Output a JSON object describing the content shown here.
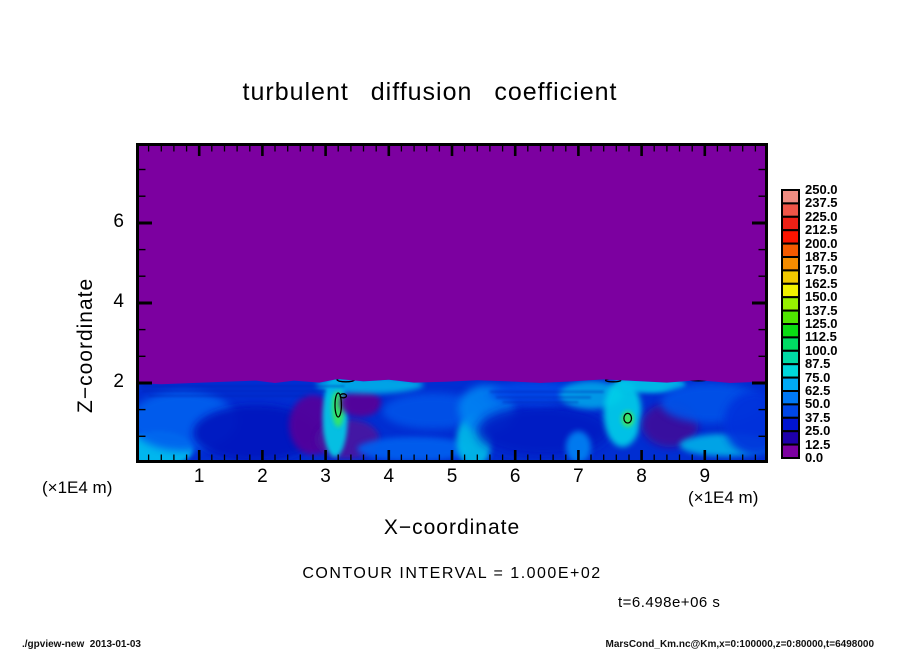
{
  "title": "turbulent diffusion coefficient",
  "axes": {
    "x": {
      "title": "X−coordinate",
      "unit": "(×1E4 m)",
      "range": [
        0,
        10
      ],
      "major_ticks": [
        1,
        2,
        3,
        4,
        5,
        6,
        7,
        8,
        9
      ],
      "minor_step": 0.2
    },
    "z": {
      "title": "Z−coordinate",
      "unit": "(×1E4 m)",
      "range": [
        0,
        8
      ],
      "major_ticks": [
        2,
        4,
        6
      ],
      "minor_step": 0.667
    }
  },
  "colorbar": {
    "min": 0.0,
    "max": 250.0,
    "step": 12.5,
    "labels": [
      "250.0",
      "237.5",
      "225.0",
      "212.5",
      "200.0",
      "187.5",
      "175.0",
      "162.5",
      "150.0",
      "137.5",
      "125.0",
      "112.5",
      "100.0",
      "87.5",
      "75.0",
      "62.5",
      "50.0",
      "37.5",
      "25.0",
      "12.5",
      "0.0"
    ]
  },
  "notes": {
    "contour_interval": "CONTOUR INTERVAL = 1.000E+02",
    "time": "t=6.498e+06 s"
  },
  "footer": {
    "left": "./gpview-new  2013-01-03",
    "right": "MarsCond_Km.nc@Km,x=0:100000,z=0:80000,t=6498000"
  },
  "chart_data": {
    "type": "heatmap",
    "title": "turbulent diffusion coefficient",
    "xlabel": "X−coordinate (×1E4 m)",
    "ylabel": "Z−coordinate (×1E4 m)",
    "xlim": [
      0,
      10
    ],
    "ylim": [
      0,
      8
    ],
    "contour_interval": 100.0,
    "time_seconds": 6498000,
    "levels": [
      0,
      12.5,
      25,
      37.5,
      50,
      62.5,
      75,
      87.5,
      100,
      112.5,
      125,
      137.5,
      150,
      162.5,
      175,
      187.5,
      200,
      212.5,
      225,
      237.5,
      250
    ],
    "palette_low_to_high": [
      "#7C00A0",
      "#1E00AA",
      "#0014D2",
      "#0046E6",
      "#0078F5",
      "#00AAF5",
      "#00D7DC",
      "#00DCA5",
      "#00DC64",
      "#0ADC14",
      "#50E600",
      "#96F000",
      "#F0F000",
      "#F0C800",
      "#F58C00",
      "#F55A00",
      "#FA1400",
      "#EE2016",
      "#F05548",
      "#F08C82"
    ],
    "field_summary": [
      {
        "region": "upper region, z above ~2 (x1E4 m)",
        "value": 0,
        "color": "#7C00A0"
      },
      {
        "region": "boundary layer, z below ~2 (x1E4 m)",
        "value": "turbulent, mostly 25-100 with cyan/green plumes reaching ~150 near x=3.2 and x=7.7",
        "color": "blue-cyan"
      }
    ],
    "band": {
      "base_color": "#002ED2",
      "interface": [
        [
          0,
          2.0
        ],
        [
          0.4,
          1.97
        ],
        [
          0.9,
          2.0
        ],
        [
          1.4,
          2.03
        ],
        [
          1.9,
          2.06
        ],
        [
          2.2,
          2.0
        ],
        [
          2.5,
          2.06
        ],
        [
          2.9,
          2.01
        ],
        [
          3.2,
          2.1
        ],
        [
          3.6,
          2.04
        ],
        [
          4.0,
          2.08
        ],
        [
          4.4,
          2.01
        ],
        [
          4.9,
          2.03
        ],
        [
          5.4,
          2.07
        ],
        [
          5.9,
          2.04
        ],
        [
          6.4,
          2.0
        ],
        [
          6.9,
          2.04
        ],
        [
          7.4,
          2.09
        ],
        [
          7.9,
          2.05
        ],
        [
          8.4,
          2.01
        ],
        [
          8.9,
          2.07
        ],
        [
          9.4,
          2.0
        ],
        [
          10,
          2.04
        ]
      ],
      "features": [
        {
          "x": 0.35,
          "z": 0.35,
          "rx": 0.55,
          "rz": 0.45,
          "color": "#00C3F0",
          "blur": 2
        },
        {
          "x": 0.75,
          "z": 1.05,
          "rx": 0.85,
          "rz": 0.75,
          "color": "#0060EE",
          "blur": 4
        },
        {
          "x": 1.9,
          "z": 0.75,
          "rx": 1.0,
          "rz": 0.7,
          "color": "#0018BE",
          "blur": 4
        },
        {
          "x": 2.8,
          "z": 0.95,
          "rx": 0.38,
          "rz": 0.75,
          "color": "#55009B",
          "blur": 3
        },
        {
          "x": 3.35,
          "z": 0.6,
          "rx": 0.5,
          "rz": 0.5,
          "color": "#4A14A0",
          "blur": 3
        },
        {
          "x": 3.15,
          "z": 1.15,
          "rx": 0.2,
          "rz": 1.0,
          "color": "#00CFE8",
          "blur": 2
        },
        {
          "x": 3.2,
          "z": 1.4,
          "rx": 0.1,
          "rz": 0.5,
          "color": "#37E65F",
          "blur": 2
        },
        {
          "x": 3.55,
          "z": 1.5,
          "rx": 0.33,
          "rz": 0.35,
          "color": "#5A0096",
          "blur": 3
        },
        {
          "x": 3.7,
          "z": 1.95,
          "rx": 0.85,
          "rz": 0.22,
          "color": "#00AEE8",
          "blur": 3
        },
        {
          "x": 4.4,
          "z": 0.35,
          "rx": 0.9,
          "rz": 0.3,
          "color": "#0060EE",
          "blur": 3
        },
        {
          "x": 4.7,
          "z": 1.3,
          "rx": 0.8,
          "rz": 0.45,
          "color": "#0052E8",
          "blur": 4
        },
        {
          "x": 5.35,
          "z": 0.55,
          "rx": 0.28,
          "rz": 0.65,
          "color": "#00BCE8",
          "blur": 3
        },
        {
          "x": 5.55,
          "z": 1.35,
          "rx": 0.45,
          "rz": 0.6,
          "color": "#0082F2",
          "blur": 4
        },
        {
          "x": 6.45,
          "z": 0.8,
          "rx": 1.05,
          "rz": 0.65,
          "color": "#001CC3",
          "blur": 5
        },
        {
          "x": 6.3,
          "z": 1.75,
          "rx": 0.7,
          "rz": 0.3,
          "color": "#0048E8",
          "blur": 4
        },
        {
          "x": 7.0,
          "z": 0.4,
          "rx": 0.2,
          "rz": 0.4,
          "color": "#0082F2",
          "blur": 3
        },
        {
          "x": 7.2,
          "z": 1.7,
          "rx": 0.5,
          "rz": 0.35,
          "color": "#00A0E8",
          "blur": 3
        },
        {
          "x": 7.7,
          "z": 1.25,
          "rx": 0.3,
          "rz": 0.85,
          "color": "#00CFE8",
          "blur": 3
        },
        {
          "x": 7.78,
          "z": 1.1,
          "rx": 0.1,
          "rz": 0.2,
          "color": "#41E65F",
          "blur": 2
        },
        {
          "x": 8.15,
          "z": 1.95,
          "rx": 0.55,
          "rz": 0.2,
          "color": "#00C3E8",
          "blur": 2
        },
        {
          "x": 8.45,
          "z": 0.95,
          "rx": 0.45,
          "rz": 0.55,
          "color": "#3C0F9B",
          "blur": 4
        },
        {
          "x": 9.1,
          "z": 1.5,
          "rx": 0.8,
          "rz": 0.5,
          "color": "#0052E8",
          "blur": 4
        },
        {
          "x": 9.35,
          "z": 0.45,
          "rx": 0.75,
          "rz": 0.28,
          "color": "#00AEE8",
          "blur": 3
        },
        {
          "x": 9.8,
          "z": 1.0,
          "rx": 0.5,
          "rz": 0.8,
          "color": "#0030DC",
          "blur": 4
        }
      ],
      "streaks": [
        {
          "x0": 0.1,
          "x1": 3.3,
          "z": 1.92
        },
        {
          "x0": 0.1,
          "x1": 3.0,
          "z": 1.8
        },
        {
          "x0": 0.2,
          "x1": 2.7,
          "z": 1.68
        },
        {
          "x0": 5.6,
          "x1": 7.4,
          "z": 1.78
        },
        {
          "x0": 5.7,
          "x1": 7.2,
          "z": 1.64
        },
        {
          "x0": 5.8,
          "x1": 7.0,
          "z": 1.52
        }
      ],
      "streak_color": "#0020B0",
      "contour_marks": [
        {
          "x": 3.2,
          "z": 1.45,
          "rx": 0.05,
          "rz": 0.3
        },
        {
          "x": 3.28,
          "z": 1.68,
          "rx": 0.05,
          "rz": 0.05
        },
        {
          "x": 3.32,
          "z": 2.08,
          "rx": 0.14,
          "rz": 0.05
        },
        {
          "x": 2.1,
          "z": 2.1,
          "rx": 0.08,
          "rz": 0.035
        },
        {
          "x": 5.05,
          "z": 2.1,
          "rx": 0.05,
          "rz": 0.03
        },
        {
          "x": 7.55,
          "z": 2.07,
          "rx": 0.12,
          "rz": 0.04
        },
        {
          "x": 8.9,
          "z": 2.1,
          "rx": 0.16,
          "rz": 0.045
        },
        {
          "x": 7.78,
          "z": 1.12,
          "rx": 0.06,
          "rz": 0.12
        }
      ]
    }
  }
}
